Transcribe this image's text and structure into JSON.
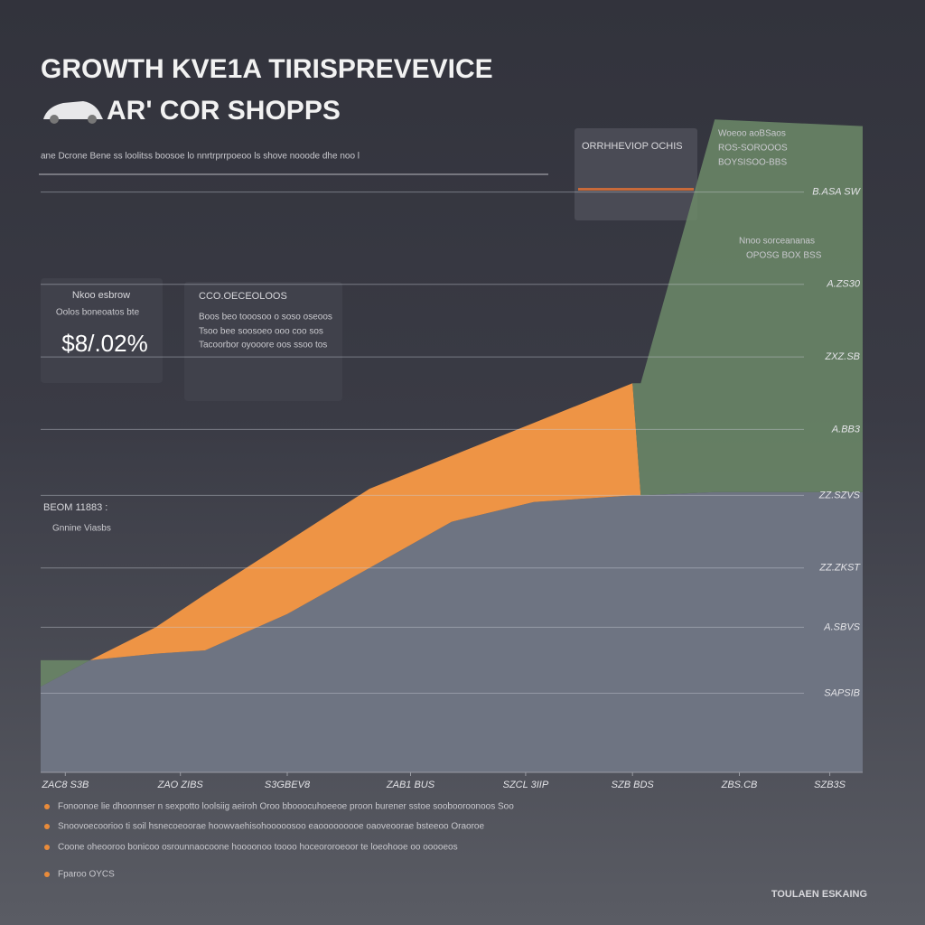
{
  "chart_data": {
    "type": "area",
    "title": "GROWTH KVE1A TIRISPREVEVICE",
    "subtitle": "AR' COR SHOPPS",
    "caption": "ane Dcrone Bene ss loolitss boosoe lo nnrtrprrpoeoo ls shove nooode dhe noo l",
    "x": [
      0,
      6,
      14,
      20,
      30,
      40,
      50,
      60,
      72,
      73,
      82,
      100
    ],
    "xlim": [
      0,
      100
    ],
    "ylim": [
      0,
      100
    ],
    "xticks": [
      {
        "value": 3,
        "label": "ZAC8 S3B"
      },
      {
        "value": 17,
        "label": "ZAO ZIBS"
      },
      {
        "value": 30,
        "label": "S3GBEV8"
      },
      {
        "value": 45,
        "label": "ZAB1 BUS"
      },
      {
        "value": 59,
        "label": "SZCL 3IIP"
      },
      {
        "value": 72,
        "label": "SZB BDS"
      },
      {
        "value": 85,
        "label": "ZBS.CB"
      },
      {
        "value": 96,
        "label": "SZB3S"
      }
    ],
    "yticks": [
      {
        "value": 88,
        "label": "B.ASA SW"
      },
      {
        "value": 74,
        "label": "A.ZS30"
      },
      {
        "value": 63,
        "label": "ZXZ.SB"
      },
      {
        "value": 52,
        "label": "A.BB3"
      },
      {
        "value": 42,
        "label": "ZZ.SZVS"
      },
      {
        "value": 31,
        "label": "ZZ.ZKST"
      },
      {
        "value": 22,
        "label": "A.SBVS"
      },
      {
        "value": 12,
        "label": "SAPSIB"
      }
    ],
    "grid": true,
    "series": [
      {
        "color": "#6e7482",
        "values": [
          13,
          17,
          18,
          18.5,
          24,
          31,
          38,
          41,
          42,
          42,
          42.5,
          42.5
        ]
      },
      {
        "color": "#ee9445",
        "values": [
          0,
          0,
          4,
          8.5,
          11,
          12,
          10,
          12,
          17,
          0,
          0,
          0
        ]
      },
      {
        "color": "#6c8a68",
        "values": [
          4,
          0,
          0,
          0,
          0,
          0,
          0,
          0,
          0,
          17,
          56.5,
          55.5
        ]
      }
    ]
  },
  "panels": [
    {
      "heading": "Nkoo esbrow",
      "lines": [
        "Oolos boneoatos bte"
      ],
      "figure": "$8/.02%"
    },
    {
      "heading": "CCO.OECEOLOOS",
      "lines": [
        "Boos beo tooosoo o soso oseoos",
        "Tsoo bee soosoeo ooo coo sos",
        "Tacoorbor oyooore oos ssoo tos"
      ]
    },
    {
      "heading": "ORRHHEVIOP OCHIS",
      "lines": []
    },
    {
      "heading": "Woeoo aoBSaos",
      "lines": [
        "ROS-SOROOOS",
        "BOYSISOO-BBS"
      ]
    }
  ],
  "side_figure": "BEOM 11883 :",
  "side_note": "Gnnine Viasbs",
  "annotations": [
    "Nnoo sorceananas",
    "OPOSG BOX BSS"
  ],
  "bullets": [
    "Fonoonoe lie dhoonnser n sexpotto loolsiig aeiroh Oroo bbooocuhoeeoe proon burener sstoe soobooroonoos Soo",
    "Snoovoecoorioo ti soil hsnecoeoorae hoowvaehisohooooosoo eaooooooooe oaoveoorae bsteeoo Oraoroe",
    "Coone oheooroo bonicoo osrounnaocoone hoooonoo toooo hoceororoeoor te loeohooe oo ooooeos",
    "Fparoo OYCS"
  ],
  "footer": "TOULAEN ESKAING"
}
